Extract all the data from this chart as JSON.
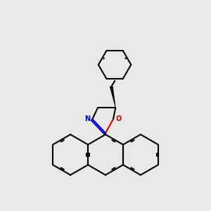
{
  "background_color": "#e8e8e8",
  "bond_color": "#000000",
  "n_color": "#0000cc",
  "o_color": "#cc0000",
  "lw": 1.5,
  "fig_size": [
    3.0,
    3.0
  ],
  "dpi": 100
}
